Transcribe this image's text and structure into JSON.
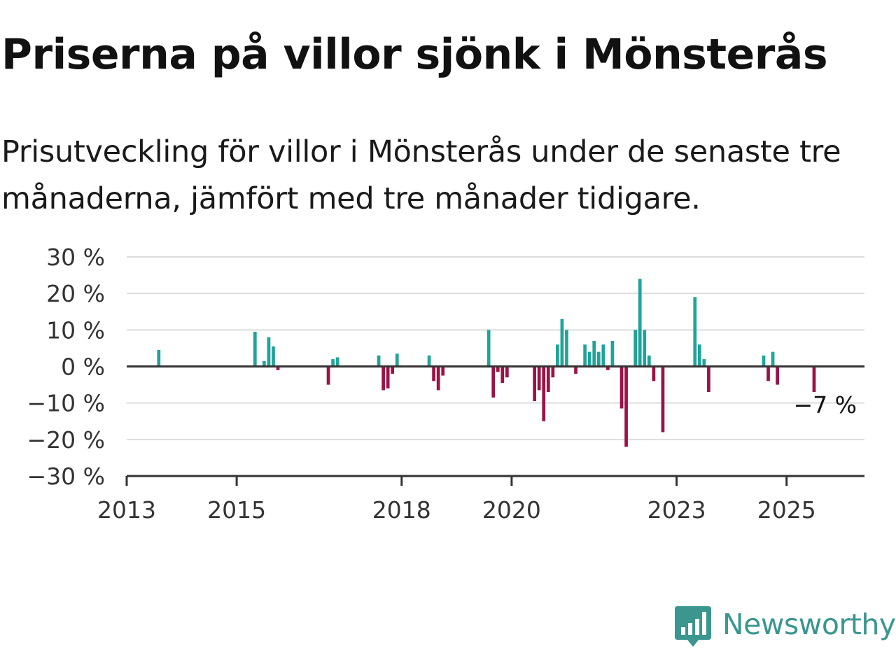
{
  "title": "Priserna på villor sjönk i Mönsterås",
  "subtitle": "Prisutveckling för villor i Mönsterås under de senaste tre månaderna, jämfört med tre månader tidigare.",
  "logo": {
    "text": "Newsworthy",
    "icon": "newsworthy-chart-bubble-icon"
  },
  "colors": {
    "positive": "#1fa39a",
    "negative": "#9b1346",
    "grid": "#dddddd",
    "axis": "#333333",
    "text": "#333333"
  },
  "chart_data": {
    "type": "bar",
    "title": "Priserna på villor sjönk i Mönsterås",
    "subtitle": "Prisutveckling för villor i Mönsterås under de senaste tre månaderna, jämfört med tre månader tidigare.",
    "xlabel": "",
    "ylabel": "",
    "ylim": [
      -30,
      30
    ],
    "xlim": [
      "2013-01",
      "2026-06"
    ],
    "grid": true,
    "y_ticks": [
      30,
      20,
      10,
      0,
      -10,
      -20,
      -30
    ],
    "y_tick_labels": [
      "30 %",
      "20 %",
      "10 %",
      "0 %",
      "−10 %",
      "−20 %",
      "−30 %"
    ],
    "x_ticks": [
      "2013",
      "2015",
      "2018",
      "2020",
      "2023",
      "2025"
    ],
    "last_value_label": "−7 %",
    "series": [
      {
        "values": [
          {
            "x": "2013-08",
            "y": 4.5
          },
          {
            "x": "2015-05",
            "y": 9.5
          },
          {
            "x": "2015-07",
            "y": 1.5
          },
          {
            "x": "2015-08",
            "y": 8
          },
          {
            "x": "2015-09",
            "y": 5.5
          },
          {
            "x": "2015-10",
            "y": -1
          },
          {
            "x": "2016-09",
            "y": -5
          },
          {
            "x": "2016-10",
            "y": 2
          },
          {
            "x": "2016-11",
            "y": 2.5
          },
          {
            "x": "2017-08",
            "y": 3
          },
          {
            "x": "2017-09",
            "y": -6.5
          },
          {
            "x": "2017-10",
            "y": -6
          },
          {
            "x": "2017-11",
            "y": -2
          },
          {
            "x": "2017-12",
            "y": 3.5
          },
          {
            "x": "2018-07",
            "y": 3
          },
          {
            "x": "2018-08",
            "y": -4
          },
          {
            "x": "2018-09",
            "y": -6.5
          },
          {
            "x": "2018-10",
            "y": -2.5
          },
          {
            "x": "2019-08",
            "y": 10
          },
          {
            "x": "2019-09",
            "y": -8.5
          },
          {
            "x": "2019-10",
            "y": -1.5
          },
          {
            "x": "2019-11",
            "y": -4.5
          },
          {
            "x": "2019-12",
            "y": -3
          },
          {
            "x": "2020-06",
            "y": -9.5
          },
          {
            "x": "2020-07",
            "y": -6.5
          },
          {
            "x": "2020-08",
            "y": -15
          },
          {
            "x": "2020-09",
            "y": -7
          },
          {
            "x": "2020-10",
            "y": -3
          },
          {
            "x": "2020-11",
            "y": 6
          },
          {
            "x": "2020-12",
            "y": 13
          },
          {
            "x": "2021-01",
            "y": 10
          },
          {
            "x": "2021-03",
            "y": -2
          },
          {
            "x": "2021-05",
            "y": 6
          },
          {
            "x": "2021-06",
            "y": 4
          },
          {
            "x": "2021-07",
            "y": 7
          },
          {
            "x": "2021-08",
            "y": 4
          },
          {
            "x": "2021-09",
            "y": 6
          },
          {
            "x": "2021-10",
            "y": -1
          },
          {
            "x": "2021-11",
            "y": 7
          },
          {
            "x": "2022-01",
            "y": -11.5
          },
          {
            "x": "2022-02",
            "y": -22
          },
          {
            "x": "2022-04",
            "y": 10
          },
          {
            "x": "2022-05",
            "y": 24
          },
          {
            "x": "2022-06",
            "y": 10
          },
          {
            "x": "2022-07",
            "y": 3
          },
          {
            "x": "2022-08",
            "y": -4
          },
          {
            "x": "2022-10",
            "y": -18
          },
          {
            "x": "2023-05",
            "y": 19
          },
          {
            "x": "2023-06",
            "y": 6
          },
          {
            "x": "2023-07",
            "y": 2
          },
          {
            "x": "2023-08",
            "y": -7
          },
          {
            "x": "2024-08",
            "y": 3
          },
          {
            "x": "2024-09",
            "y": -4
          },
          {
            "x": "2024-10",
            "y": 4
          },
          {
            "x": "2024-11",
            "y": -5
          },
          {
            "x": "2025-07",
            "y": -7
          }
        ]
      }
    ]
  }
}
